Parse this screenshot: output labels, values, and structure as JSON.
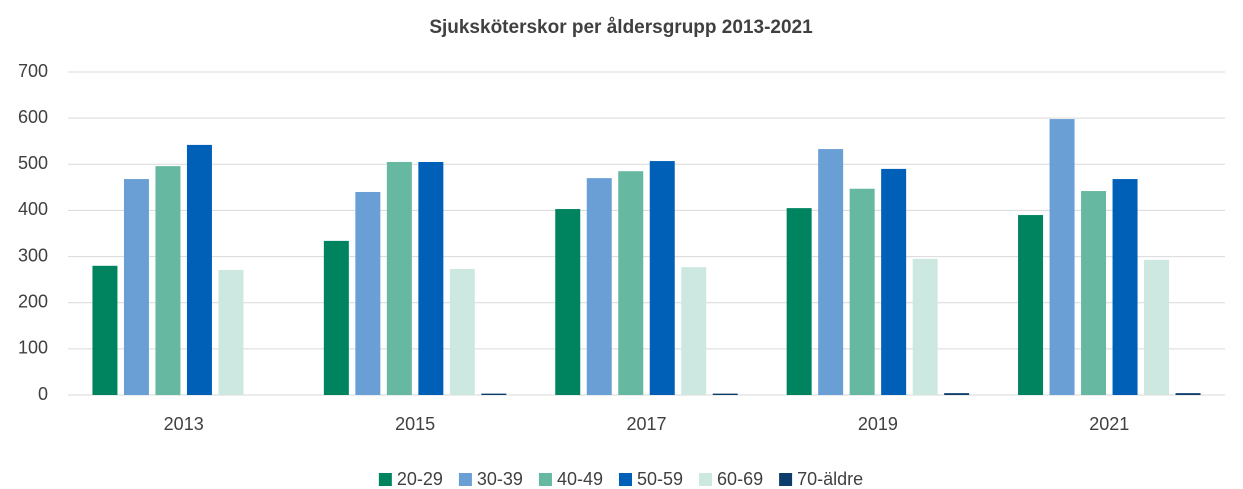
{
  "chart_data": {
    "type": "bar",
    "title": "Sjuksköterskor per åldersgrupp 2013-2021",
    "categories": [
      "2013",
      "2015",
      "2017",
      "2019",
      "2021"
    ],
    "series": [
      {
        "name": "20-29",
        "color": "#00845f",
        "values": [
          280,
          334,
          403,
          405,
          390
        ]
      },
      {
        "name": "30-39",
        "color": "#6a9fd6",
        "values": [
          468,
          440,
          470,
          533,
          598
        ]
      },
      {
        "name": "40-49",
        "color": "#66b8a0",
        "values": [
          496,
          505,
          485,
          447,
          442
        ]
      },
      {
        "name": "50-59",
        "color": "#0060b8",
        "values": [
          542,
          505,
          507,
          490,
          468
        ]
      },
      {
        "name": "60-69",
        "color": "#cce8e0",
        "values": [
          271,
          273,
          277,
          295,
          293
        ]
      },
      {
        "name": "70-äldre",
        "color": "#0d3d6b",
        "values": [
          0,
          3,
          3,
          4,
          4
        ]
      }
    ],
    "ylim": [
      0,
      700
    ],
    "yticks": [
      0,
      100,
      200,
      300,
      400,
      500,
      600,
      700
    ],
    "grid": true,
    "legend": "bottom"
  }
}
